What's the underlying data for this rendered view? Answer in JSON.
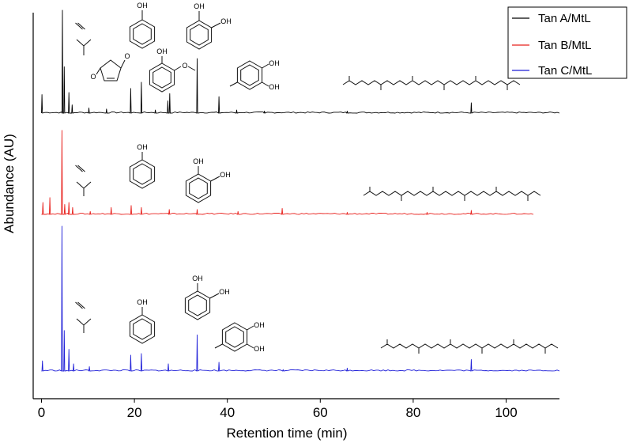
{
  "chart_data": {
    "type": "line",
    "title": "",
    "xlabel": "Retention time (min)",
    "ylabel": "Abundance (AU)",
    "xlim": [
      -1,
      110
    ],
    "xticks": [
      0,
      20,
      40,
      60,
      80,
      100
    ],
    "y_tick_labels": false,
    "grid": false,
    "legend_position": "top-right",
    "series": [
      {
        "name": "Tan A/MtL",
        "color": "#000000",
        "peaks": [
          {
            "x": 0.1,
            "h": 0.18
          },
          {
            "x": 4.5,
            "h": 1.0
          },
          {
            "x": 4.9,
            "h": 0.45
          },
          {
            "x": 5.9,
            "h": 0.2
          },
          {
            "x": 6.6,
            "h": 0.08
          },
          {
            "x": 10.2,
            "h": 0.05
          },
          {
            "x": 14.0,
            "h": 0.04
          },
          {
            "x": 19.2,
            "h": 0.24
          },
          {
            "x": 21.5,
            "h": 0.3
          },
          {
            "x": 24.5,
            "h": 0.03
          },
          {
            "x": 27.2,
            "h": 0.12
          },
          {
            "x": 27.6,
            "h": 0.19
          },
          {
            "x": 33.5,
            "h": 0.53
          },
          {
            "x": 38.2,
            "h": 0.16
          },
          {
            "x": 42.0,
            "h": 0.03
          },
          {
            "x": 48.0,
            "h": 0.02
          },
          {
            "x": 65.8,
            "h": 0.02
          },
          {
            "x": 92.5,
            "h": 0.1
          }
        ]
      },
      {
        "name": "Tan B/MtL",
        "color": "#e8201c",
        "peaks": [
          {
            "x": 0.3,
            "h": 0.12
          },
          {
            "x": 1.8,
            "h": 0.17
          },
          {
            "x": 4.4,
            "h": 0.85
          },
          {
            "x": 5.0,
            "h": 0.1
          },
          {
            "x": 5.9,
            "h": 0.12
          },
          {
            "x": 6.7,
            "h": 0.07
          },
          {
            "x": 10.5,
            "h": 0.03
          },
          {
            "x": 15.0,
            "h": 0.07
          },
          {
            "x": 19.3,
            "h": 0.09
          },
          {
            "x": 21.5,
            "h": 0.07
          },
          {
            "x": 27.5,
            "h": 0.05
          },
          {
            "x": 33.5,
            "h": 0.05
          },
          {
            "x": 42.3,
            "h": 0.03
          },
          {
            "x": 51.8,
            "h": 0.06
          },
          {
            "x": 65.8,
            "h": 0.02
          },
          {
            "x": 83.0,
            "h": 0.02
          },
          {
            "x": 92.5,
            "h": 0.04
          }
        ]
      },
      {
        "name": "Tan C/MtL",
        "color": "#1f1fd8",
        "peaks": [
          {
            "x": 0.2,
            "h": 0.07
          },
          {
            "x": 4.4,
            "h": 1.0
          },
          {
            "x": 4.9,
            "h": 0.28
          },
          {
            "x": 5.9,
            "h": 0.15
          },
          {
            "x": 6.9,
            "h": 0.05
          },
          {
            "x": 10.3,
            "h": 0.03
          },
          {
            "x": 19.2,
            "h": 0.11
          },
          {
            "x": 21.5,
            "h": 0.12
          },
          {
            "x": 27.3,
            "h": 0.05
          },
          {
            "x": 33.5,
            "h": 0.25
          },
          {
            "x": 38.2,
            "h": 0.06
          },
          {
            "x": 52.0,
            "h": 0.01
          },
          {
            "x": 65.8,
            "h": 0.02
          },
          {
            "x": 92.5,
            "h": 0.08
          }
        ]
      }
    ]
  },
  "legend": {
    "items": [
      "Tan A/MtL",
      "Tan B/MtL",
      "Tan C/MtL"
    ]
  },
  "structure_labels": {
    "oh": "OH",
    "o": "O"
  }
}
